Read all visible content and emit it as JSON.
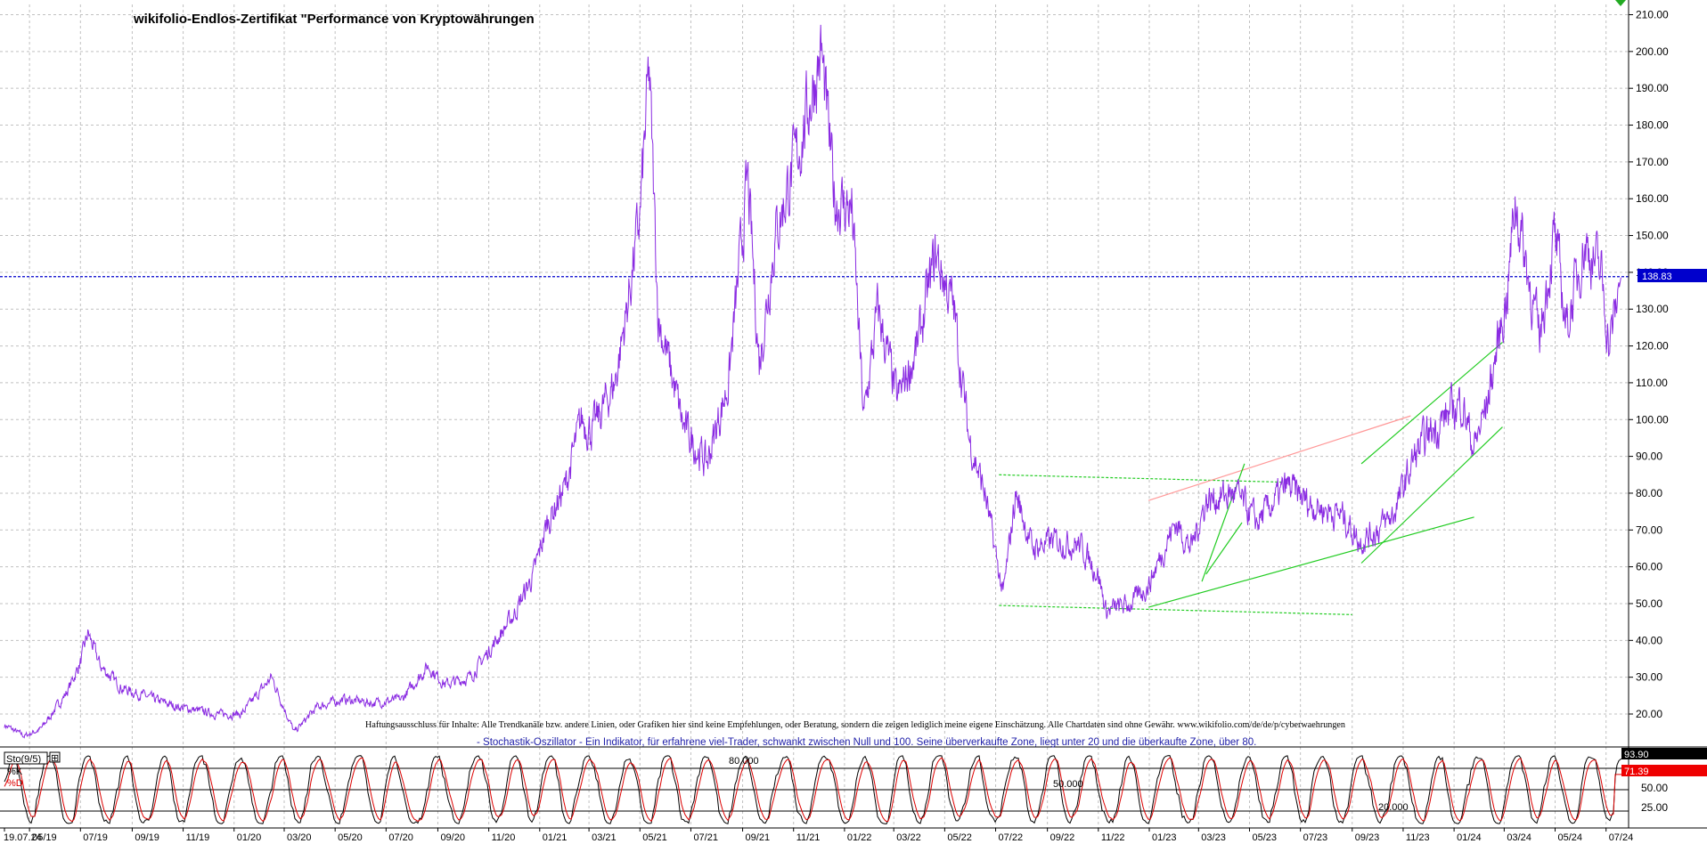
{
  "title": "wikifolio-Endlos-Zertifikat \"Performance von Kryptowährungen",
  "disclaimer": "Haftungsausschluss für Inhalte: Alle Trendkanäle bzw. andere Linien, oder Grafiken hier sind keine Empfehlungen, oder Beratung, sondern die zeigen lediglich meine eigene Einschätzung. Alle Chartdaten sind ohne Gewähr.  www.wikifolio.com/de/de/p/cyberwaehrungen",
  "indicator_note": "- Stochastik-Oszillator - Ein Indikator, für erfahrene viel-Trader, schwankt zwischen Null und 100. Seine überverkaufte Zone, liegt unter 20 und die überkaufte Zone, über 80.",
  "colors": {
    "price": "#8a2be2",
    "current": "#0000cc",
    "k": "#000000",
    "d": "#dd0000",
    "trend_green": "#22cc22",
    "trend_red": "#ff9999",
    "grid": "#c0c0c0"
  },
  "chart_data": {
    "type": "line",
    "price_panel": {
      "yaxis_ticks": [
        "20.00",
        "30.00",
        "40.00",
        "50.00",
        "60.00",
        "70.00",
        "80.00",
        "90.00",
        "100.00",
        "110.00",
        "120.00",
        "130.00",
        "140.00",
        "150.00",
        "160.00",
        "170.00",
        "180.00",
        "190.00",
        "200.00",
        "210.00"
      ],
      "ylim": [
        13,
        213
      ],
      "current_value": 138.83,
      "current_label": "138.83",
      "series": [
        {
          "x": [
            "2019-04-01",
            "2019-04-25",
            "2019-05-15",
            "2019-06-15",
            "2019-07-01",
            "2019-07-10",
            "2019-07-25",
            "2019-08-20",
            "2019-09-15",
            "2019-10-10",
            "2019-10-25",
            "2019-12-10",
            "2020-01-10",
            "2020-02-15",
            "2020-03-13",
            "2020-04-10",
            "2020-05-10",
            "2020-06-15",
            "2020-07-20",
            "2020-08-20",
            "2020-09-10",
            "2020-10-10",
            "2020-11-10",
            "2020-12-01",
            "2020-12-25",
            "2021-01-10",
            "2021-02-01",
            "2021-02-20",
            "2021-03-05",
            "2021-04-01",
            "2021-04-14",
            "2021-05-01",
            "2021-05-12",
            "2021-05-23",
            "2021-06-22",
            "2021-07-20",
            "2021-08-15",
            "2021-09-07",
            "2021-09-21",
            "2021-10-10",
            "2021-11-10",
            "2021-12-04",
            "2021-12-20",
            "2022-01-10",
            "2022-01-24",
            "2022-02-10",
            "2022-03-05",
            "2022-03-30",
            "2022-04-20",
            "2022-05-12",
            "2022-05-30",
            "2022-06-18",
            "2022-07-10",
            "2022-07-25",
            "2022-08-14",
            "2022-09-07",
            "2022-10-10",
            "2022-11-01",
            "2022-11-10",
            "2022-12-10",
            "2022-12-31",
            "2023-02-01",
            "2023-02-20",
            "2023-03-10",
            "2023-04-14",
            "2023-05-10",
            "2023-06-15",
            "2023-07-13",
            "2023-08-20",
            "2023-09-10",
            "2023-10-01",
            "2023-10-20",
            "2023-11-15",
            "2023-12-05",
            "2024-01-10",
            "2024-01-25",
            "2024-02-10",
            "2024-03-05",
            "2024-03-14",
            "2024-04-12",
            "2024-04-30",
            "2024-05-15",
            "2024-06-05",
            "2024-06-25",
            "2024-07-05",
            "2024-07-19"
          ],
          "values": [
            17,
            14,
            16,
            26,
            34,
            42,
            33,
            27,
            25,
            23,
            22,
            20,
            20,
            30,
            15,
            22,
            24,
            23,
            24,
            33,
            28,
            30,
            40,
            47,
            58,
            72,
            82,
            100,
            97,
            110,
            128,
            155,
            195,
            128,
            98,
            88,
            110,
            165,
            115,
            150,
            176,
            200,
            160,
            157,
            100,
            130,
            105,
            120,
            145,
            130,
            95,
            80,
            52,
            80,
            65,
            67,
            66,
            58,
            48,
            50,
            55,
            72,
            65,
            78,
            80,
            72,
            82,
            77,
            74,
            67,
            70,
            74,
            90,
            97,
            105,
            92,
            105,
            135,
            160,
            122,
            150,
            125,
            148,
            140,
            120,
            138.83
          ]
        }
      ]
    },
    "oscillator_panel": {
      "name": "Sto(9/5)",
      "legend": [
        "%K",
        "%D"
      ],
      "levels": [
        "80.000",
        "50.000",
        "20.000"
      ],
      "yaxis_ticks": [
        "25.00",
        "50.00",
        "75.00"
      ],
      "ylim": [
        0,
        100
      ],
      "k_value": "93.90",
      "d_value": "71.39",
      "k_last": 93.9,
      "d_last": 71.39
    },
    "xaxis_ticks": [
      "19.07.24",
      "05/19",
      "07/19",
      "09/19",
      "11/19",
      "01/20",
      "03/20",
      "05/20",
      "07/20",
      "09/20",
      "11/20",
      "01/21",
      "03/21",
      "05/21",
      "07/21",
      "09/21",
      "11/21",
      "01/22",
      "03/22",
      "05/22",
      "07/22",
      "09/22",
      "11/22",
      "01/23",
      "03/23",
      "05/23",
      "07/23",
      "09/23",
      "11/23",
      "01/24",
      "03/24",
      "05/24",
      "07/24"
    ],
    "trendlines": [
      {
        "from": [
          "2022-07-05",
          85
        ],
        "to": [
          "2023-06-10",
          83
        ],
        "color": "green",
        "style": "dashed"
      },
      {
        "from": [
          "2022-07-05",
          49.5
        ],
        "to": [
          "2023-09-01",
          47
        ],
        "color": "green",
        "style": "dashed"
      },
      {
        "from": [
          "2022-12-31",
          49
        ],
        "to": [
          "2024-01-25",
          73.5
        ],
        "color": "green",
        "style": "solid"
      },
      {
        "from": [
          "2022-12-31",
          78
        ],
        "to": [
          "2023-11-10",
          101
        ],
        "color": "red",
        "style": "solid"
      },
      {
        "from": [
          "2023-03-05",
          56
        ],
        "to": [
          "2023-04-25",
          88
        ],
        "color": "green",
        "style": "solid"
      },
      {
        "from": [
          "2023-03-10",
          58
        ],
        "to": [
          "2023-04-22",
          72
        ],
        "color": "green",
        "style": "solid"
      },
      {
        "from": [
          "2023-09-12",
          88
        ],
        "to": [
          "2024-02-28",
          121
        ],
        "color": "green",
        "style": "solid"
      },
      {
        "from": [
          "2023-09-12",
          61
        ],
        "to": [
          "2024-02-28",
          98
        ],
        "color": "green",
        "style": "solid"
      }
    ]
  }
}
